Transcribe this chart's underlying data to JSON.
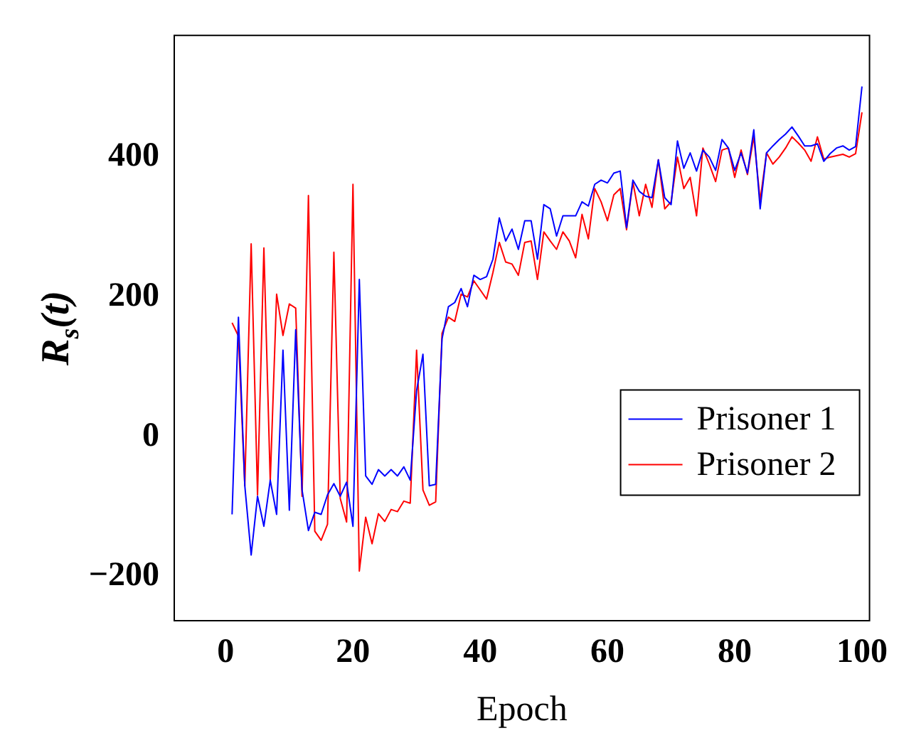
{
  "chart_data": {
    "type": "line",
    "xlabel": "Epoch",
    "ylabel": "R$_{s}$(t)",
    "x": [
      1,
      2,
      3,
      4,
      5,
      6,
      7,
      8,
      9,
      10,
      11,
      12,
      13,
      14,
      15,
      16,
      17,
      18,
      19,
      20,
      21,
      22,
      23,
      24,
      25,
      26,
      27,
      28,
      29,
      30,
      31,
      32,
      33,
      34,
      35,
      36,
      37,
      38,
      39,
      40,
      41,
      42,
      43,
      44,
      45,
      46,
      47,
      48,
      49,
      50,
      51,
      52,
      53,
      54,
      55,
      56,
      57,
      58,
      59,
      60,
      61,
      62,
      63,
      64,
      65,
      66,
      67,
      68,
      69,
      70,
      71,
      72,
      73,
      74,
      75,
      76,
      77,
      78,
      79,
      80,
      81,
      82,
      83,
      84,
      85,
      86,
      87,
      88,
      89,
      90,
      91,
      92,
      93,
      94,
      95,
      96,
      97,
      98,
      99,
      100
    ],
    "series": [
      {
        "name": "Prisoner 1",
        "color": "#0000ff",
        "values": [
          -111,
          171,
          -70,
          -169,
          -85,
          -128,
          -62,
          -111,
          124,
          -105,
          153,
          -76,
          -134,
          -108,
          -111,
          -83,
          -67,
          -85,
          -65,
          -128,
          225,
          -56,
          -68,
          -47,
          -56,
          -47,
          -56,
          -43,
          -62,
          66,
          118,
          -70,
          -68,
          140,
          186,
          192,
          212,
          186,
          231,
          225,
          229,
          254,
          313,
          280,
          297,
          268,
          309,
          309,
          254,
          332,
          326,
          287,
          316,
          316,
          316,
          336,
          330,
          361,
          367,
          363,
          377,
          380,
          299,
          367,
          351,
          344,
          342,
          396,
          342,
          332,
          423,
          384,
          406,
          380,
          410,
          400,
          381,
          425,
          413,
          381,
          406,
          377,
          439,
          326,
          406,
          416,
          425,
          433,
          443,
          430,
          416,
          416,
          419,
          394,
          405,
          413,
          416,
          410,
          415,
          501
        ]
      },
      {
        "name": "Prisoner 2",
        "color": "#ff0000",
        "values": [
          163,
          144,
          -70,
          276,
          -83,
          270,
          -64,
          204,
          145,
          190,
          184,
          -85,
          345,
          -135,
          -148,
          -125,
          264,
          -88,
          -122,
          361,
          -192,
          -115,
          -153,
          -110,
          -121,
          -104,
          -107,
          -92,
          -95,
          124,
          -76,
          -98,
          -93,
          148,
          171,
          165,
          204,
          200,
          223,
          210,
          197,
          235,
          278,
          250,
          247,
          231,
          278,
          280,
          225,
          293,
          280,
          268,
          293,
          280,
          256,
          318,
          283,
          355,
          336,
          309,
          346,
          355,
          296,
          364,
          316,
          361,
          328,
          396,
          326,
          336,
          400,
          355,
          371,
          316,
          413,
          390,
          365,
          410,
          413,
          371,
          410,
          375,
          429,
          338,
          406,
          390,
          400,
          413,
          429,
          420,
          410,
          394,
          429,
          397,
          400,
          402,
          404,
          400,
          405,
          464
        ]
      }
    ],
    "xlim": [
      -8.2,
      101.3
    ],
    "ylim": [
      -264,
      575
    ],
    "xticks": [
      0,
      20,
      40,
      60,
      80,
      100
    ],
    "yticks": [
      {
        "value": -200,
        "label": "−200"
      },
      0,
      200,
      400
    ],
    "grid": false,
    "legend": "right",
    "marker": "none",
    "line_style": "solid"
  }
}
